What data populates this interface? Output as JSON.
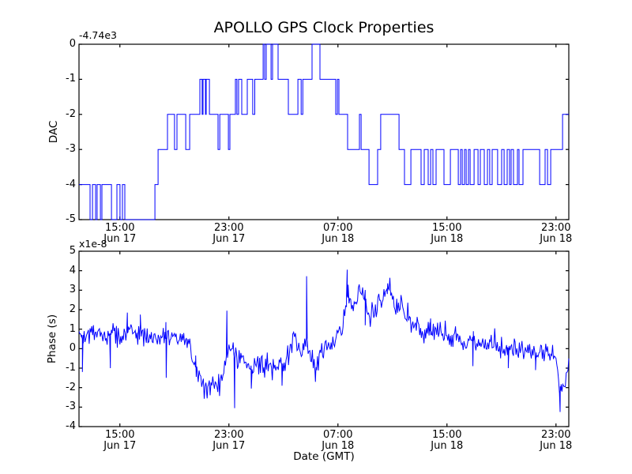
{
  "figure": {
    "title": "APOLLO GPS Clock Properties",
    "xlabel": "Date (GMT)",
    "background_color": "#ffffff",
    "line_color": "#0000ff",
    "axis_color": "#000000"
  },
  "top_plot": {
    "ylabel": "DAC",
    "offset_text": "-4.74e3",
    "ylim": [
      -5,
      0
    ],
    "ytick_values": [
      0,
      -1,
      -2,
      -3,
      -4,
      -5
    ],
    "ytick_labels": [
      "0",
      "-1",
      "-2",
      "-3",
      "-4",
      "-5"
    ]
  },
  "bottom_plot": {
    "ylabel": "Phase (s)",
    "scale_text": "x1e-8",
    "ylim": [
      -4,
      5
    ],
    "ytick_values": [
      5,
      4,
      3,
      2,
      1,
      0,
      -1,
      -2,
      -3,
      -4
    ],
    "ytick_labels": [
      "5",
      "4",
      "3",
      "2",
      "1",
      "0",
      "-1",
      "-2",
      "-3",
      "-4"
    ]
  },
  "xaxis": {
    "range_hours": [
      0,
      35.94
    ],
    "tick_hours": [
      3,
      11,
      19,
      27,
      35
    ],
    "tick_labels": [
      {
        "time": "15:00",
        "date": "Jun 17"
      },
      {
        "time": "23:00",
        "date": "Jun 17"
      },
      {
        "time": "07:00",
        "date": "Jun 18"
      },
      {
        "time": "15:00",
        "date": "Jun 18"
      },
      {
        "time": "23:00",
        "date": "Jun 18"
      }
    ]
  },
  "chart_data": [
    {
      "type": "line",
      "name": "DAC",
      "subplot": "top",
      "drawstyle": "steps-post",
      "ylabel": "DAC",
      "y_offset_text": "-4.74e3",
      "ylim": [
        -5,
        0
      ],
      "x_axis": "hours from plot left edge (Jun 17 ~12:00 GMT to Jun 19 ~00:00 GMT)",
      "points": [
        [
          0,
          -4
        ],
        [
          0.81,
          -5
        ],
        [
          0.99,
          -4
        ],
        [
          1.22,
          -5
        ],
        [
          1.33,
          -4
        ],
        [
          1.57,
          -5
        ],
        [
          1.68,
          -4
        ],
        [
          2.38,
          -5
        ],
        [
          2.78,
          -4
        ],
        [
          3.01,
          -5
        ],
        [
          3.19,
          -4
        ],
        [
          3.36,
          -5
        ],
        [
          5.57,
          -4
        ],
        [
          5.8,
          -3
        ],
        [
          6.49,
          -2
        ],
        [
          7.01,
          -3
        ],
        [
          7.19,
          -2
        ],
        [
          7.83,
          -3
        ],
        [
          8.12,
          -2
        ],
        [
          8.87,
          -1
        ],
        [
          9.04,
          -2
        ],
        [
          9.1,
          -1
        ],
        [
          9.28,
          -2
        ],
        [
          9.33,
          -1
        ],
        [
          9.57,
          -2
        ],
        [
          10.2,
          -3
        ],
        [
          10.33,
          -2
        ],
        [
          10.96,
          -3
        ],
        [
          11.07,
          -2
        ],
        [
          11.48,
          -1
        ],
        [
          11.59,
          -2
        ],
        [
          11.71,
          -1
        ],
        [
          11.94,
          -2
        ],
        [
          12.35,
          -1
        ],
        [
          12.75,
          -2
        ],
        [
          12.9,
          -1
        ],
        [
          13.51,
          0
        ],
        [
          13.62,
          -1
        ],
        [
          13.74,
          0
        ],
        [
          14.09,
          -1
        ],
        [
          14.2,
          0
        ],
        [
          14.61,
          -1
        ],
        [
          15.36,
          -2
        ],
        [
          16.06,
          -1
        ],
        [
          16.3,
          -2
        ],
        [
          16.42,
          -1
        ],
        [
          17.1,
          0
        ],
        [
          17.68,
          -1
        ],
        [
          18.84,
          -2
        ],
        [
          18.96,
          -1
        ],
        [
          19.07,
          -2
        ],
        [
          19.71,
          -3
        ],
        [
          20.58,
          -2
        ],
        [
          20.7,
          -3
        ],
        [
          21.28,
          -4
        ],
        [
          21.91,
          -3
        ],
        [
          22.14,
          -2
        ],
        [
          23.48,
          -3
        ],
        [
          23.88,
          -4
        ],
        [
          24.35,
          -3
        ],
        [
          25.1,
          -4
        ],
        [
          25.33,
          -3
        ],
        [
          25.62,
          -4
        ],
        [
          25.8,
          -3
        ],
        [
          25.97,
          -4
        ],
        [
          26.2,
          -3
        ],
        [
          26.78,
          -4
        ],
        [
          27.25,
          -3
        ],
        [
          27.83,
          -4
        ],
        [
          28.0,
          -3
        ],
        [
          28.12,
          -4
        ],
        [
          28.29,
          -3
        ],
        [
          28.41,
          -4
        ],
        [
          28.58,
          -3
        ],
        [
          28.7,
          -4
        ],
        [
          28.99,
          -3
        ],
        [
          29.28,
          -4
        ],
        [
          29.45,
          -3
        ],
        [
          29.74,
          -4
        ],
        [
          29.97,
          -3
        ],
        [
          30.14,
          -4
        ],
        [
          30.32,
          -3
        ],
        [
          30.72,
          -4
        ],
        [
          31.01,
          -3
        ],
        [
          31.19,
          -4
        ],
        [
          31.42,
          -3
        ],
        [
          31.59,
          -4
        ],
        [
          31.71,
          -3
        ],
        [
          31.88,
          -4
        ],
        [
          32.17,
          -3
        ],
        [
          32.29,
          -4
        ],
        [
          32.58,
          -3
        ],
        [
          33.8,
          -4
        ],
        [
          34.2,
          -3
        ],
        [
          34.38,
          -4
        ],
        [
          34.61,
          -3
        ],
        [
          35.48,
          -2
        ]
      ]
    },
    {
      "type": "line",
      "name": "Phase (s)",
      "subplot": "bottom",
      "scale_text": "x1e-8",
      "ylim": [
        -4,
        5
      ],
      "x_axis": "hours from plot left edge (Jun 17 ~12:00 GMT to Jun 19 ~00:00 GMT)",
      "mean_anchors": [
        [
          0,
          0.6
        ],
        [
          0.5,
          0.8
        ],
        [
          1,
          0.7
        ],
        [
          1.5,
          0.9
        ],
        [
          2,
          0.65
        ],
        [
          2.5,
          0.75
        ],
        [
          3,
          0.6
        ],
        [
          3.5,
          0.9
        ],
        [
          4,
          0.65
        ],
        [
          4.5,
          0.85
        ],
        [
          5,
          0.5
        ],
        [
          5.5,
          0.6
        ],
        [
          6,
          0.55
        ],
        [
          6.5,
          0.5
        ],
        [
          7,
          0.55
        ],
        [
          7.5,
          0.45
        ],
        [
          8,
          0.3
        ],
        [
          8.3,
          -0.2
        ],
        [
          8.7,
          -1.2
        ],
        [
          9,
          -1.8
        ],
        [
          9.3,
          -2.0
        ],
        [
          9.7,
          -1.8
        ],
        [
          10,
          -1.7
        ],
        [
          10.3,
          -1.9
        ],
        [
          10.6,
          -1.3
        ],
        [
          10.9,
          -0.3
        ],
        [
          11.1,
          0.4
        ],
        [
          11.35,
          -0.3
        ],
        [
          11.6,
          -0.5
        ],
        [
          12,
          -0.7
        ],
        [
          12.4,
          -0.9
        ],
        [
          12.7,
          -1.1
        ],
        [
          13,
          -0.8
        ],
        [
          13.4,
          -1.0
        ],
        [
          13.8,
          -0.7
        ],
        [
          14.2,
          -0.9
        ],
        [
          14.6,
          -0.8
        ],
        [
          15,
          -0.75
        ],
        [
          15.4,
          -0.4
        ],
        [
          15.8,
          0.9
        ],
        [
          16.1,
          0.2
        ],
        [
          16.4,
          -0.3
        ],
        [
          16.7,
          0.4
        ],
        [
          17,
          -0.6
        ],
        [
          17.4,
          -1.0
        ],
        [
          17.8,
          0.0
        ],
        [
          18.2,
          0.3
        ],
        [
          18.6,
          0.1
        ],
        [
          19,
          0.6
        ],
        [
          19.4,
          1.5
        ],
        [
          19.7,
          2.7
        ],
        [
          20,
          2.3
        ],
        [
          20.4,
          2.6
        ],
        [
          20.8,
          2.9
        ],
        [
          21.1,
          2.4
        ],
        [
          21.3,
          1.3
        ],
        [
          21.6,
          1.8
        ],
        [
          22,
          2.4
        ],
        [
          22.4,
          3.0
        ],
        [
          22.7,
          3.1
        ],
        [
          23,
          2.6
        ],
        [
          23.4,
          2.2
        ],
        [
          23.8,
          2.1
        ],
        [
          24.1,
          1.5
        ],
        [
          24.5,
          1.2
        ],
        [
          25,
          1.05
        ],
        [
          25.5,
          0.95
        ],
        [
          26,
          0.85
        ],
        [
          26.7,
          0.8
        ],
        [
          27.3,
          0.6
        ],
        [
          27.8,
          0.55
        ],
        [
          28.4,
          0.45
        ],
        [
          29,
          0.4
        ],
        [
          29.6,
          0.25
        ],
        [
          30.1,
          0.15
        ],
        [
          30.7,
          0.1
        ],
        [
          31.3,
          0.1
        ],
        [
          31.9,
          0.0
        ],
        [
          32.5,
          -0.1
        ],
        [
          33,
          -0.15
        ],
        [
          33.6,
          -0.2
        ],
        [
          34.2,
          -0.3
        ],
        [
          34.8,
          -0.35
        ],
        [
          35.1,
          -0.8
        ],
        [
          35.35,
          -2.5
        ],
        [
          35.6,
          -2.2
        ],
        [
          35.8,
          -1.2
        ],
        [
          35.94,
          -0.7
        ]
      ],
      "spikes": [
        [
          0.25,
          -1.2
        ],
        [
          2.3,
          -1.0
        ],
        [
          3.55,
          1.85
        ],
        [
          4.5,
          1.75
        ],
        [
          6.4,
          -1.5
        ],
        [
          8.6,
          -1.45
        ],
        [
          9.4,
          -2.55
        ],
        [
          10.85,
          1.95
        ],
        [
          11.42,
          -3.05
        ],
        [
          12.64,
          -2.05
        ],
        [
          14.9,
          -1.9
        ],
        [
          16.7,
          3.72
        ],
        [
          17.35,
          -1.7
        ],
        [
          19.68,
          4.05
        ],
        [
          21.0,
          1.2
        ],
        [
          22.65,
          3.35
        ],
        [
          25.8,
          1.55
        ],
        [
          28.9,
          -0.9
        ],
        [
          31.5,
          -1.0
        ],
        [
          33.5,
          -1.1
        ],
        [
          35.3,
          -3.25
        ]
      ],
      "noise_sigma": 0.28,
      "noise_seed": 42,
      "samples_per_hour": 16
    }
  ]
}
